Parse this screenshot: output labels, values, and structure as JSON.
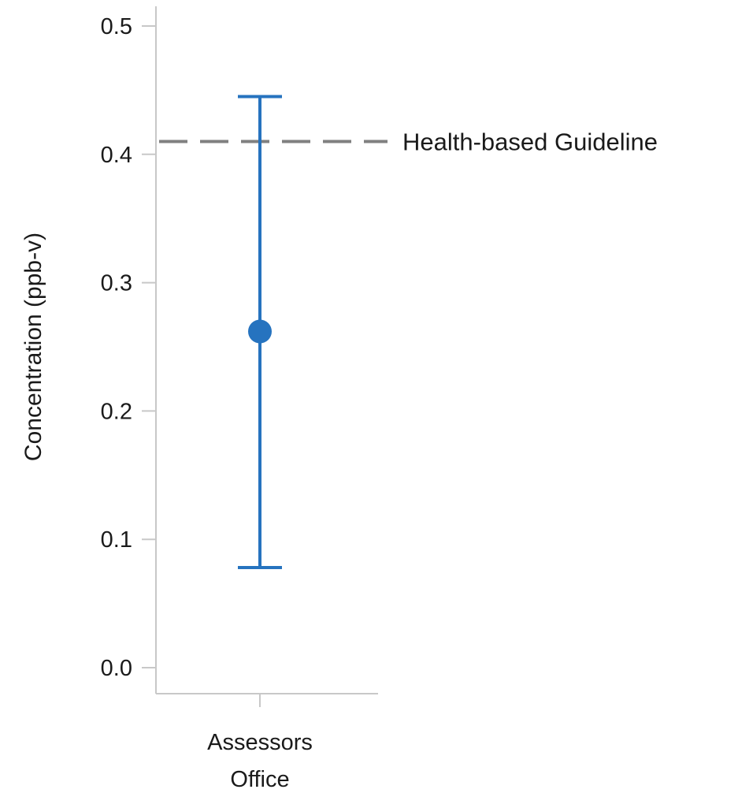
{
  "chart_data": {
    "type": "scatter",
    "subtype": "point-with-error-bar",
    "ylabel": "Concentration (ppb-v)",
    "ylim": [
      0.0,
      0.5
    ],
    "yticks": [
      "0.0",
      "0.1",
      "0.2",
      "0.3",
      "0.4",
      "0.5"
    ],
    "ytick_values": [
      0.0,
      0.1,
      0.2,
      0.3,
      0.4,
      0.5
    ],
    "categories": [
      "Assessors Office"
    ],
    "category_label_lines": [
      [
        "Assessors",
        "Office"
      ]
    ],
    "points": [
      {
        "category": "Assessors Office",
        "value": 0.262,
        "lower": 0.078,
        "upper": 0.445
      }
    ],
    "reference_line": {
      "value": 0.41,
      "label": "Health-based Guideline",
      "style": "dashed"
    },
    "grid": false,
    "legend": "none",
    "colors": {
      "series": "#2673BF",
      "reference": "#808080",
      "axis": "#C8C8C8",
      "text": "#1A1A1A"
    }
  }
}
